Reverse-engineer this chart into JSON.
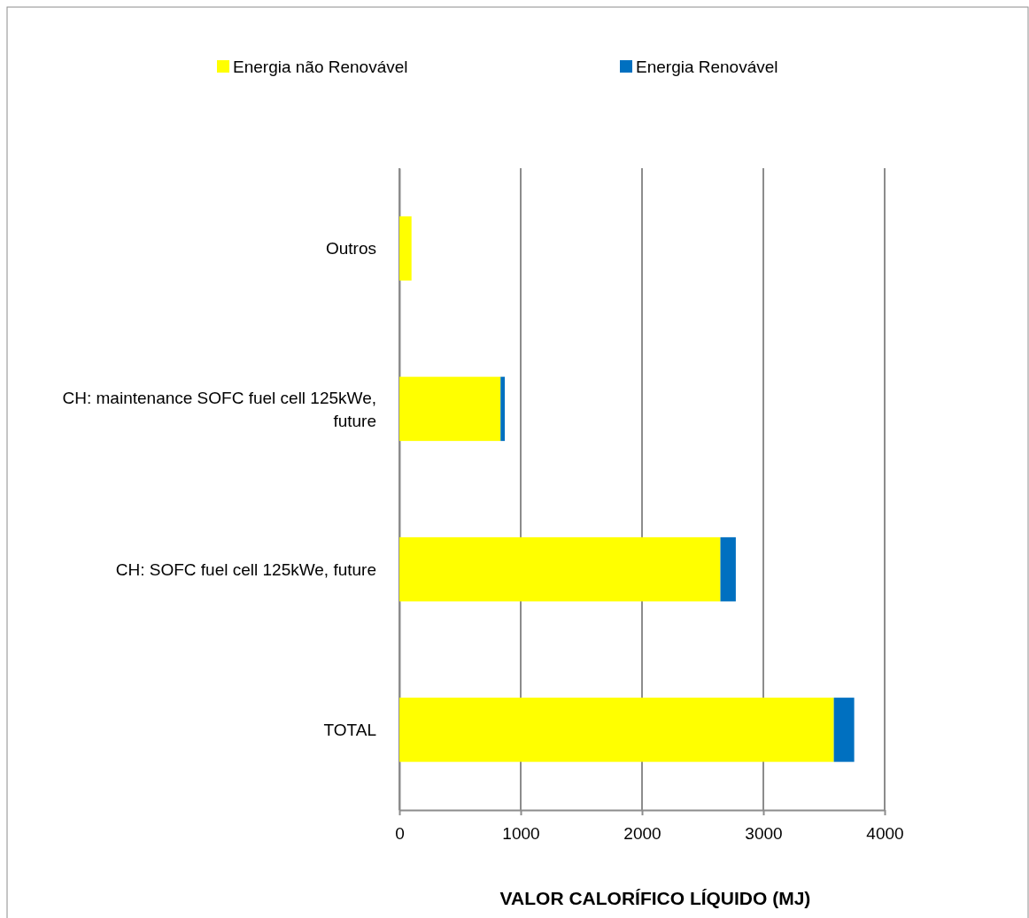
{
  "chart_data": {
    "type": "bar",
    "orientation": "horizontal",
    "stacked": true,
    "xlabel": "VALOR CALORÍFICO LÍQUIDO (MJ)",
    "categories": [
      "Outros",
      "CH: maintenance SOFC fuel cell 125kWe, future",
      "CH: SOFC fuel cell 125kWe, future",
      "TOTAL"
    ],
    "series": [
      {
        "name": "Energia não Renovável",
        "color": "#ffff00",
        "values": [
          100,
          834,
          2646,
          3581
        ]
      },
      {
        "name": "Energia Renovável",
        "color": "#0070c0",
        "values": [
          null,
          35,
          127,
          168
        ]
      }
    ],
    "xlim": [
      0,
      4000
    ],
    "xticks": [
      0,
      1000,
      2000,
      3000,
      4000
    ],
    "grid": "x",
    "legend": "top"
  }
}
